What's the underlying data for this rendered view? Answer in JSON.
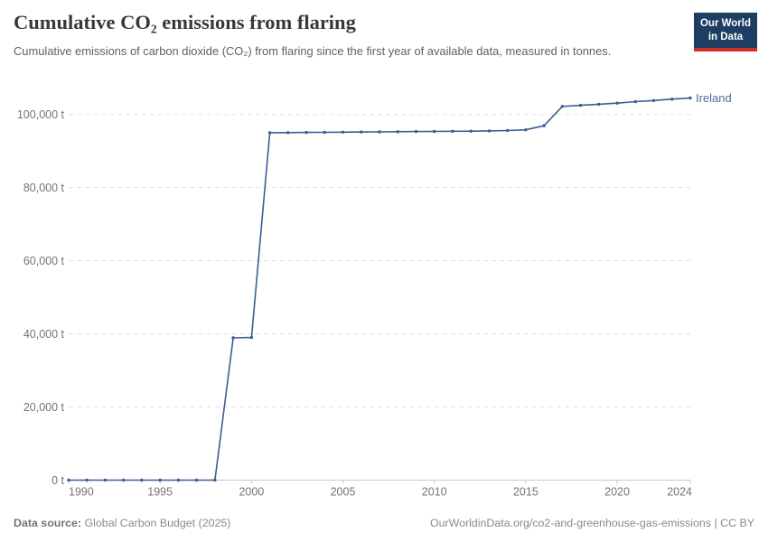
{
  "header": {
    "title": "Cumulative CO₂ emissions from flaring",
    "subtitle": "Cumulative emissions of carbon dioxide (CO₂) from flaring since the first year of available data, measured in tonnes.",
    "logo": {
      "line1": "Our World",
      "line2": "in Data"
    }
  },
  "footer": {
    "source_label": "Data source:",
    "source_value": "Global Carbon Budget (2025)",
    "citation": "OurWorldinData.org/co2-and-greenhouse-gas-emissions | CC BY"
  },
  "colors": {
    "line": "#3d5c93",
    "point": "#3d5c93",
    "entity_label": "#51699b",
    "logo_bg": "#1d3d63",
    "logo_red": "#cf2e27",
    "grid": "#e0e0e0",
    "axis": "#c8c8c8",
    "tick_text": "#757575"
  },
  "chart_data": {
    "type": "line",
    "title": "Cumulative CO₂ emissions from flaring",
    "xlabel": "",
    "ylabel": "tonnes",
    "grid": true,
    "legend": "end-of-line entity label",
    "xlim": [
      1990,
      2024
    ],
    "ylim": [
      0,
      100000
    ],
    "x_ticks": [
      1990,
      1995,
      2000,
      2005,
      2010,
      2015,
      2020,
      2024
    ],
    "y_ticks": [
      {
        "value": 0,
        "label": "0 t"
      },
      {
        "value": 20000,
        "label": "20,000 t"
      },
      {
        "value": 40000,
        "label": "40,000 t"
      },
      {
        "value": 60000,
        "label": "60,000 t"
      },
      {
        "value": 80000,
        "label": "80,000 t"
      },
      {
        "value": 100000,
        "label": "100,000 t"
      }
    ],
    "series": [
      {
        "name": "Ireland",
        "x": [
          1990,
          1991,
          1992,
          1993,
          1994,
          1995,
          1996,
          1997,
          1998,
          1999,
          2000,
          2001,
          2002,
          2003,
          2004,
          2005,
          2006,
          2007,
          2008,
          2009,
          2010,
          2011,
          2012,
          2013,
          2014,
          2015,
          2016,
          2017,
          2018,
          2019,
          2020,
          2021,
          2022,
          2023,
          2024
        ],
        "values": [
          0,
          0,
          0,
          0,
          0,
          0,
          0,
          0,
          0,
          38900,
          39000,
          95000,
          95040,
          95080,
          95120,
          95160,
          95200,
          95240,
          95280,
          95320,
          95360,
          95400,
          95440,
          95500,
          95600,
          95800,
          96900,
          102200,
          102500,
          102800,
          103100,
          103500,
          103800,
          104200,
          104500
        ]
      }
    ]
  }
}
